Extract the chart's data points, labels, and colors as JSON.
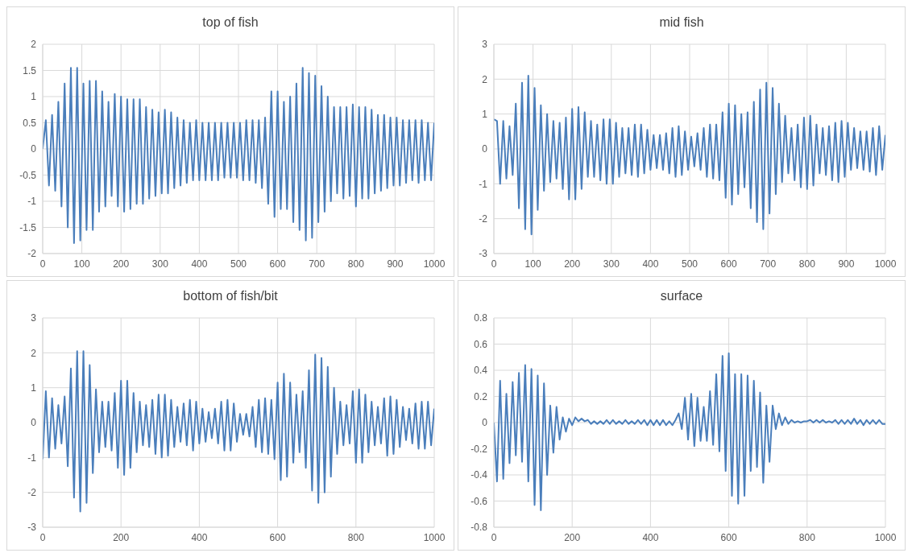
{
  "chart_data": [
    {
      "type": "line",
      "title": "top of fish",
      "xlim": [
        0,
        1000
      ],
      "xticks": [
        0,
        100,
        200,
        300,
        400,
        500,
        600,
        700,
        800,
        900,
        1000
      ],
      "ylim": [
        -2,
        2
      ],
      "yticks": [
        -2,
        -1.5,
        -1,
        -0.5,
        0,
        0.5,
        1,
        1.5,
        2
      ],
      "grid": true,
      "x": [
        0,
        8,
        16,
        24,
        32,
        40,
        48,
        56,
        64,
        72,
        80,
        88,
        96,
        104,
        112,
        120,
        128,
        136,
        144,
        152,
        160,
        168,
        176,
        184,
        192,
        200,
        208,
        216,
        224,
        232,
        240,
        248,
        256,
        264,
        272,
        280,
        288,
        296,
        304,
        312,
        320,
        328,
        336,
        344,
        352,
        360,
        368,
        376,
        384,
        392,
        400,
        408,
        416,
        424,
        432,
        440,
        448,
        456,
        464,
        472,
        480,
        488,
        496,
        504,
        512,
        520,
        528,
        536,
        544,
        552,
        560,
        568,
        576,
        584,
        592,
        600,
        608,
        616,
        624,
        632,
        640,
        648,
        656,
        664,
        672,
        680,
        688,
        696,
        704,
        712,
        720,
        728,
        736,
        744,
        752,
        760,
        768,
        776,
        784,
        792,
        800,
        808,
        816,
        824,
        832,
        840,
        848,
        856,
        864,
        872,
        880,
        888,
        896,
        904,
        912,
        920,
        928,
        936,
        944,
        952,
        960,
        968,
        976,
        984,
        992,
        1000
      ],
      "series": [
        {
          "color": "#4a7ebb",
          "values": [
            0,
            0.55,
            -0.7,
            0.65,
            -0.8,
            0.9,
            -1.1,
            1.25,
            -1.5,
            1.55,
            -1.8,
            1.55,
            -1.75,
            1.25,
            -1.55,
            1.3,
            -1.55,
            1.3,
            -1.2,
            1.1,
            -1.1,
            0.9,
            -0.9,
            1.05,
            -1.1,
            1.0,
            -1.2,
            0.95,
            -1.15,
            0.95,
            -1.05,
            0.95,
            -1.05,
            0.8,
            -0.95,
            0.75,
            -0.9,
            0.7,
            -0.85,
            0.75,
            -0.85,
            0.7,
            -0.75,
            0.6,
            -0.7,
            0.55,
            -0.65,
            0.5,
            -0.6,
            0.55,
            -0.6,
            0.5,
            -0.6,
            0.5,
            -0.6,
            0.5,
            -0.6,
            0.5,
            -0.55,
            0.5,
            -0.55,
            0.5,
            -0.55,
            0.5,
            -0.6,
            0.55,
            -0.6,
            0.55,
            -0.65,
            0.55,
            -0.75,
            0.6,
            -1.05,
            1.1,
            -1.3,
            1.1,
            -1.15,
            0.9,
            -1.15,
            1.0,
            -1.4,
            1.25,
            -1.55,
            1.55,
            -1.75,
            1.45,
            -1.7,
            1.4,
            -1.4,
            1.2,
            -1.2,
            1.0,
            -1.0,
            0.8,
            -0.85,
            0.8,
            -0.95,
            0.8,
            -0.9,
            0.85,
            -1.1,
            0.8,
            -0.95,
            0.8,
            -0.95,
            0.75,
            -0.85,
            0.65,
            -0.8,
            0.65,
            -0.75,
            0.6,
            -0.7,
            0.6,
            -0.7,
            0.55,
            -0.65,
            0.55,
            -0.6,
            0.55,
            -0.65,
            0.55,
            -0.6,
            0.5,
            -0.6,
            0.5
          ]
        }
      ]
    },
    {
      "type": "line",
      "title": "mid fish",
      "xlim": [
        0,
        1000
      ],
      "xticks": [
        0,
        100,
        200,
        300,
        400,
        500,
        600,
        700,
        800,
        900,
        1000
      ],
      "ylim": [
        -3,
        3
      ],
      "yticks": [
        -3,
        -2,
        -1,
        0,
        1,
        2,
        3
      ],
      "grid": true,
      "x": [
        0,
        8,
        16,
        24,
        32,
        40,
        48,
        56,
        64,
        72,
        80,
        88,
        96,
        104,
        112,
        120,
        128,
        136,
        144,
        152,
        160,
        168,
        176,
        184,
        192,
        200,
        208,
        216,
        224,
        232,
        240,
        248,
        256,
        264,
        272,
        280,
        288,
        296,
        304,
        312,
        320,
        328,
        336,
        344,
        352,
        360,
        368,
        376,
        384,
        392,
        400,
        408,
        416,
        424,
        432,
        440,
        448,
        456,
        464,
        472,
        480,
        488,
        496,
        504,
        512,
        520,
        528,
        536,
        544,
        552,
        560,
        568,
        576,
        584,
        592,
        600,
        608,
        616,
        624,
        632,
        640,
        648,
        656,
        664,
        672,
        680,
        688,
        696,
        704,
        712,
        720,
        728,
        736,
        744,
        752,
        760,
        768,
        776,
        784,
        792,
        800,
        808,
        816,
        824,
        832,
        840,
        848,
        856,
        864,
        872,
        880,
        888,
        896,
        904,
        912,
        920,
        928,
        936,
        944,
        952,
        960,
        968,
        976,
        984,
        992,
        1000
      ],
      "series": [
        {
          "color": "#4a7ebb",
          "values": [
            0.85,
            0.8,
            -1.0,
            0.8,
            -0.85,
            0.65,
            -0.75,
            1.3,
            -1.7,
            1.9,
            -2.3,
            2.1,
            -2.45,
            1.75,
            -1.75,
            1.25,
            -1.2,
            1.0,
            -0.95,
            0.8,
            -0.85,
            0.75,
            -1.15,
            0.9,
            -1.45,
            1.15,
            -1.45,
            1.2,
            -1.15,
            1.05,
            -0.8,
            0.8,
            -0.8,
            0.7,
            -0.9,
            0.85,
            -1.0,
            0.85,
            -1.0,
            0.75,
            -0.8,
            0.6,
            -0.7,
            0.6,
            -0.75,
            0.7,
            -0.8,
            0.7,
            -0.7,
            0.55,
            -0.6,
            0.4,
            -0.55,
            0.4,
            -0.6,
            0.45,
            -0.7,
            0.6,
            -0.8,
            0.65,
            -0.75,
            0.5,
            -0.6,
            0.35,
            -0.5,
            0.45,
            -0.6,
            0.6,
            -0.8,
            0.7,
            -0.85,
            0.7,
            -0.9,
            1.05,
            -1.4,
            1.3,
            -1.6,
            1.25,
            -1.3,
            1.0,
            -1.1,
            1.05,
            -1.7,
            1.35,
            -2.1,
            1.7,
            -2.3,
            1.9,
            -1.85,
            1.75,
            -1.3,
            1.3,
            -0.95,
            0.95,
            -0.7,
            0.6,
            -0.9,
            0.7,
            -1.1,
            0.9,
            -1.15,
            0.95,
            -1.05,
            0.7,
            -0.7,
            0.6,
            -0.75,
            0.65,
            -0.9,
            0.75,
            -0.95,
            0.8,
            -0.8,
            0.75,
            -0.6,
            0.6,
            -0.55,
            0.5,
            -0.6,
            0.5,
            -0.65,
            0.6,
            -0.75,
            0.65,
            -0.6,
            0.4
          ]
        }
      ]
    },
    {
      "type": "line",
      "title": "bottom of fish/bit",
      "xlim": [
        0,
        1000
      ],
      "xticks": [
        0,
        200,
        400,
        600,
        800,
        1000
      ],
      "ylim": [
        -3,
        3
      ],
      "yticks": [
        -3,
        -2,
        -1,
        0,
        1,
        2,
        3
      ],
      "grid": true,
      "x": [
        0,
        8,
        16,
        24,
        32,
        40,
        48,
        56,
        64,
        72,
        80,
        88,
        96,
        104,
        112,
        120,
        128,
        136,
        144,
        152,
        160,
        168,
        176,
        184,
        192,
        200,
        208,
        216,
        224,
        232,
        240,
        248,
        256,
        264,
        272,
        280,
        288,
        296,
        304,
        312,
        320,
        328,
        336,
        344,
        352,
        360,
        368,
        376,
        384,
        392,
        400,
        408,
        416,
        424,
        432,
        440,
        448,
        456,
        464,
        472,
        480,
        488,
        496,
        504,
        512,
        520,
        528,
        536,
        544,
        552,
        560,
        568,
        576,
        584,
        592,
        600,
        608,
        616,
        624,
        632,
        640,
        648,
        656,
        664,
        672,
        680,
        688,
        696,
        704,
        712,
        720,
        728,
        736,
        744,
        752,
        760,
        768,
        776,
        784,
        792,
        800,
        808,
        816,
        824,
        832,
        840,
        848,
        856,
        864,
        872,
        880,
        888,
        896,
        904,
        912,
        920,
        928,
        936,
        944,
        952,
        960,
        968,
        976,
        984,
        992,
        1000
      ],
      "series": [
        {
          "color": "#4a7ebb",
          "values": [
            -1.05,
            0.9,
            -1.0,
            0.7,
            -0.75,
            0.5,
            -0.6,
            0.75,
            -1.25,
            1.55,
            -2.15,
            2.05,
            -2.55,
            2.05,
            -2.3,
            1.65,
            -1.45,
            0.95,
            -0.85,
            0.6,
            -0.7,
            0.6,
            -0.8,
            0.85,
            -1.3,
            1.2,
            -1.5,
            1.2,
            -1.3,
            0.85,
            -0.85,
            0.6,
            -0.65,
            0.5,
            -0.7,
            0.65,
            -0.9,
            0.8,
            -1.0,
            0.8,
            -0.95,
            0.65,
            -0.7,
            0.45,
            -0.55,
            0.55,
            -0.65,
            0.65,
            -0.8,
            0.6,
            -0.6,
            0.4,
            -0.55,
            0.3,
            -0.45,
            0.4,
            -0.6,
            0.6,
            -0.8,
            0.65,
            -0.8,
            0.55,
            -0.55,
            0.25,
            -0.35,
            0.25,
            -0.4,
            0.45,
            -0.7,
            0.65,
            -0.85,
            0.7,
            -0.9,
            0.65,
            -1.05,
            1.15,
            -1.65,
            1.4,
            -1.55,
            1.15,
            -1.15,
            0.8,
            -0.85,
            0.9,
            -1.3,
            1.5,
            -1.95,
            1.95,
            -2.3,
            1.85,
            -2.0,
            1.6,
            -1.55,
            1.0,
            -0.9,
            0.6,
            -0.65,
            0.5,
            -0.6,
            0.9,
            -1.15,
            0.95,
            -1.15,
            0.8,
            -0.85,
            0.6,
            -0.65,
            0.45,
            -0.6,
            0.7,
            -0.95,
            0.75,
            -0.9,
            0.65,
            -0.7,
            0.45,
            -0.5,
            0.4,
            -0.6,
            0.55,
            -0.75,
            0.6,
            -0.75,
            0.6,
            -0.65,
            0.4
          ]
        }
      ]
    },
    {
      "type": "line",
      "title": "surface",
      "xlim": [
        0,
        1000
      ],
      "xticks": [
        0,
        200,
        400,
        600,
        800,
        1000
      ],
      "ylim": [
        -0.8,
        0.8
      ],
      "yticks": [
        -0.8,
        -0.6,
        -0.4,
        -0.2,
        0,
        0.2,
        0.4,
        0.6,
        0.8
      ],
      "grid": true,
      "x": [
        0,
        8,
        16,
        24,
        32,
        40,
        48,
        56,
        64,
        72,
        80,
        88,
        96,
        104,
        112,
        120,
        128,
        136,
        144,
        152,
        160,
        168,
        176,
        184,
        192,
        200,
        208,
        216,
        224,
        232,
        240,
        248,
        256,
        264,
        272,
        280,
        288,
        296,
        304,
        312,
        320,
        328,
        336,
        344,
        352,
        360,
        368,
        376,
        384,
        392,
        400,
        408,
        416,
        424,
        432,
        440,
        448,
        456,
        464,
        472,
        480,
        488,
        496,
        504,
        512,
        520,
        528,
        536,
        544,
        552,
        560,
        568,
        576,
        584,
        592,
        600,
        608,
        616,
        624,
        632,
        640,
        648,
        656,
        664,
        672,
        680,
        688,
        696,
        704,
        712,
        720,
        728,
        736,
        744,
        752,
        760,
        768,
        776,
        784,
        792,
        800,
        808,
        816,
        824,
        832,
        840,
        848,
        856,
        864,
        872,
        880,
        888,
        896,
        904,
        912,
        920,
        928,
        936,
        944,
        952,
        960,
        968,
        976,
        984,
        992,
        1000
      ],
      "series": [
        {
          "color": "#4a7ebb",
          "values": [
            0,
            -0.45,
            0.32,
            -0.43,
            0.22,
            -0.31,
            0.31,
            -0.25,
            0.38,
            -0.3,
            0.44,
            -0.45,
            0.41,
            -0.63,
            0.36,
            -0.67,
            0.3,
            -0.4,
            0.13,
            -0.23,
            0.12,
            -0.13,
            0.04,
            -0.07,
            0.03,
            -0.02,
            0.04,
            0.01,
            0.03,
            0.01,
            0.02,
            -0.01,
            0.01,
            -0.01,
            0.01,
            -0.01,
            0.02,
            -0.01,
            0.02,
            -0.01,
            0.01,
            -0.01,
            0.02,
            -0.01,
            0.01,
            -0.01,
            0.02,
            -0.01,
            0.02,
            -0.02,
            0.02,
            -0.02,
            0.02,
            -0.02,
            0.02,
            -0.02,
            0.01,
            -0.02,
            0.02,
            0.07,
            -0.05,
            0.19,
            -0.13,
            0.22,
            -0.18,
            0.19,
            -0.14,
            0.12,
            -0.14,
            0.24,
            -0.17,
            0.37,
            -0.22,
            0.51,
            -0.37,
            0.53,
            -0.56,
            0.37,
            -0.62,
            0.37,
            -0.56,
            0.36,
            -0.37,
            0.32,
            -0.34,
            0.23,
            -0.46,
            0.13,
            -0.3,
            0.13,
            -0.05,
            0.07,
            -0.02,
            0.04,
            -0.01,
            0.02,
            0,
            0.01,
            0,
            0.01,
            0.01,
            0.02,
            0,
            0.02,
            0,
            0.02,
            0,
            0.01,
            0,
            0.02,
            -0.01,
            0.02,
            -0.01,
            0.02,
            -0.01,
            0.03,
            -0.01,
            0.02,
            -0.02,
            0.02,
            -0.01,
            0.02,
            -0.01,
            0.02,
            -0.01,
            -0.01
          ]
        }
      ]
    }
  ]
}
